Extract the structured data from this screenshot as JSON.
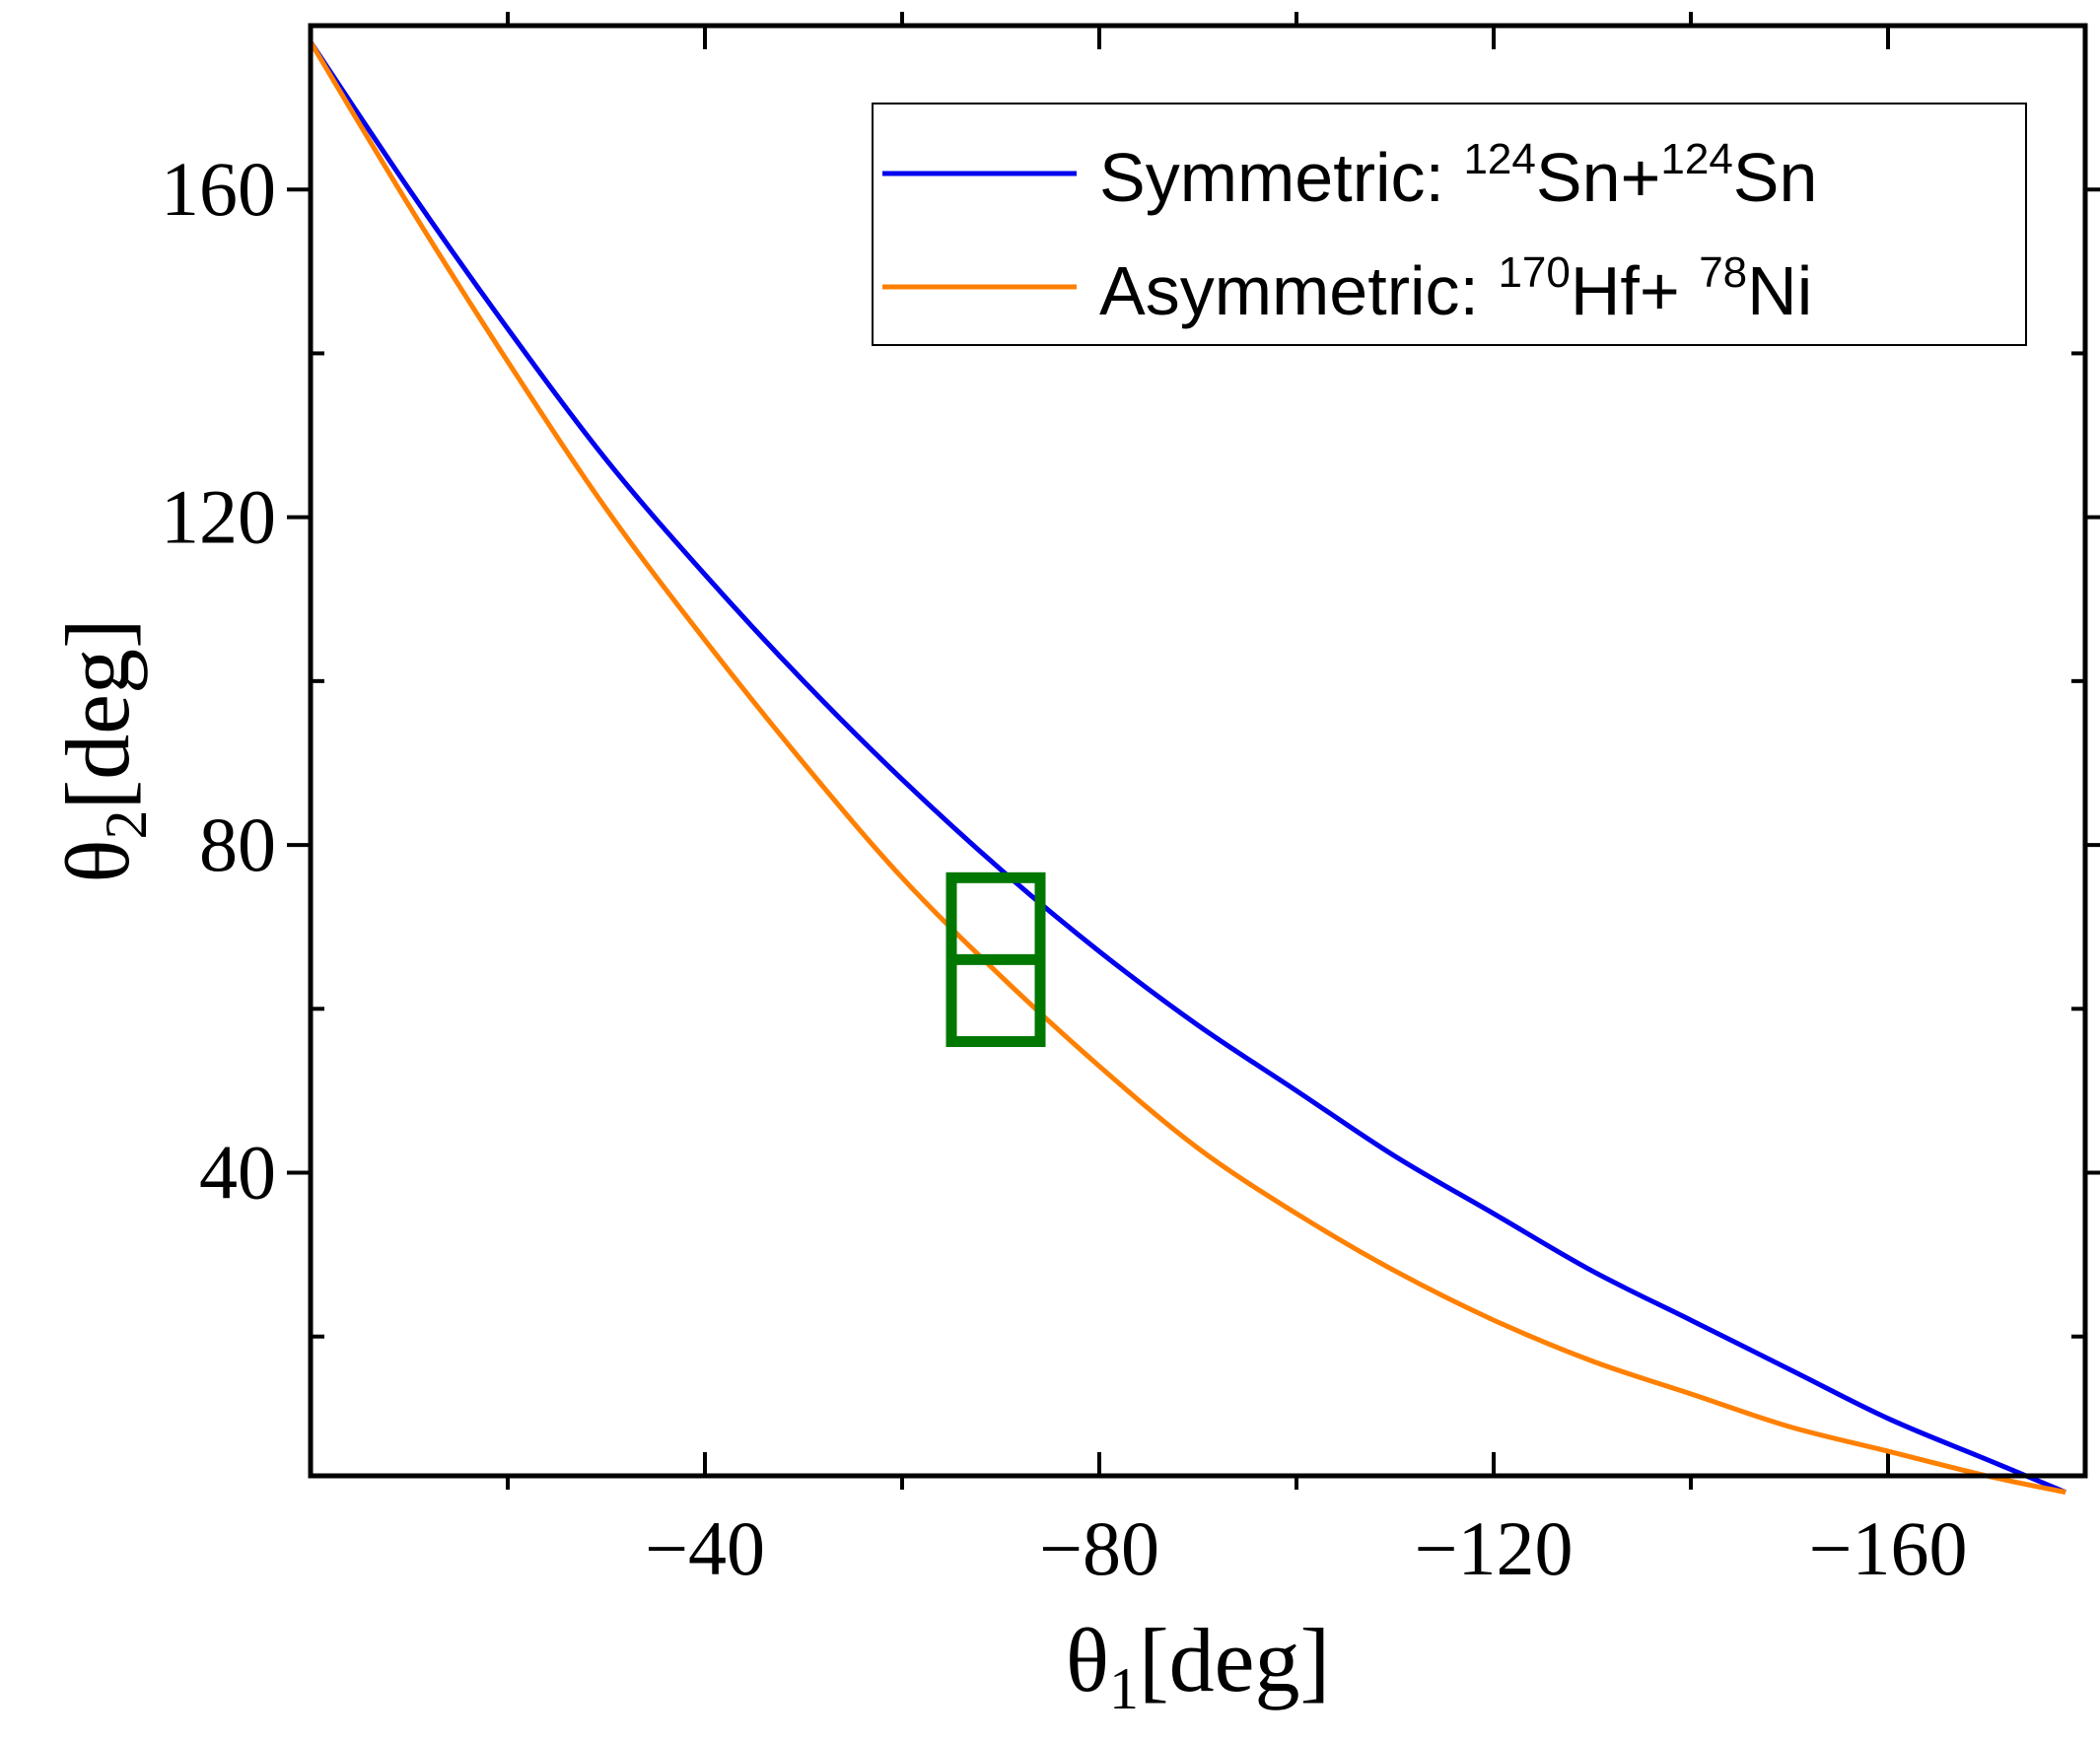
{
  "chart_data": {
    "type": "line",
    "title": "",
    "xlabel": {
      "symbol": "θ",
      "subscript": "1",
      "unit": "[deg]"
    },
    "ylabel": {
      "symbol": "θ",
      "subscript": "2",
      "unit": "[deg]"
    },
    "xlim": [
      0,
      -180
    ],
    "ylim": [
      3,
      180
    ],
    "xticks": [
      {
        "value": -40,
        "label": "−40"
      },
      {
        "value": -80,
        "label": "−80"
      },
      {
        "value": -120,
        "label": "−120"
      },
      {
        "value": -160,
        "label": "−160"
      }
    ],
    "xminor": [
      -20,
      -60,
      -100,
      -140
    ],
    "yticks": [
      {
        "value": 40,
        "label": "40"
      },
      {
        "value": 80,
        "label": "80"
      },
      {
        "value": 120,
        "label": "120"
      },
      {
        "value": 160,
        "label": "160"
      }
    ],
    "yminor": [
      20,
      60,
      100,
      140
    ],
    "grid": false,
    "legend_position": "top-right",
    "series": [
      {
        "name": "Symmetric",
        "legend": {
          "prefix": "Symmetric:  ",
          "parts": [
            {
              "sup": "124"
            },
            {
              "text": "Sn+"
            },
            {
              "sup": "124"
            },
            {
              "text": "Sn"
            }
          ]
        },
        "color": "#0000ee",
        "x": [
          0,
          -10,
          -20,
          -30,
          -40,
          -50,
          -60,
          -70,
          -80,
          -90,
          -100,
          -110,
          -120,
          -130,
          -140,
          -150,
          -160,
          -170,
          -178
        ],
        "y": [
          178,
          160,
          143,
          127,
          113,
          100,
          88,
          77,
          67,
          58,
          50,
          42,
          35,
          28,
          22,
          16,
          10,
          5,
          1
        ]
      },
      {
        "name": "Asymmetric",
        "legend": {
          "prefix": "Asymmetric: ",
          "parts": [
            {
              "sup": "170"
            },
            {
              "text": "Hf+ "
            },
            {
              "sup": "78"
            },
            {
              "text": "Ni"
            }
          ]
        },
        "color": "#ff8000",
        "x": [
          0,
          -10,
          -20,
          -30,
          -40,
          -50,
          -60,
          -70,
          -80,
          -90,
          -100,
          -110,
          -120,
          -130,
          -140,
          -150,
          -160,
          -170,
          -178
        ],
        "y": [
          178,
          158,
          139,
          121,
          105,
          90,
          76,
          64,
          53,
          43,
          35,
          28,
          22,
          17,
          13,
          9,
          6,
          3,
          1
        ]
      }
    ],
    "annotations": [
      {
        "type": "box",
        "x_range": [
          -65,
          -74
        ],
        "y_range": [
          56,
          76
        ],
        "divider_y": 66,
        "color": "#007700"
      }
    ]
  }
}
